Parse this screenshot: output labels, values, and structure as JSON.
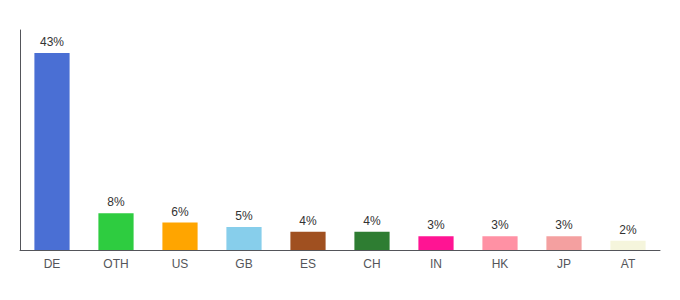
{
  "chart_data": {
    "type": "bar",
    "categories": [
      "DE",
      "OTH",
      "US",
      "GB",
      "ES",
      "CH",
      "IN",
      "HK",
      "JP",
      "AT"
    ],
    "values": [
      43,
      8,
      6,
      5,
      4,
      4,
      3,
      3,
      3,
      2
    ],
    "value_labels": [
      "43%",
      "8%",
      "6%",
      "5%",
      "4%",
      "4%",
      "3%",
      "3%",
      "3%",
      "2%"
    ],
    "colors": [
      "#4A6FD4",
      "#2ECC40",
      "#FFA500",
      "#87CEEB",
      "#A05020",
      "#2E7D32",
      "#FF1493",
      "#FF91A4",
      "#F4A0A0",
      "#F5F5DC"
    ],
    "ylim": [
      0,
      48
    ],
    "yticks": [],
    "grid": false,
    "data_labels": true,
    "tick_labels": "x"
  }
}
